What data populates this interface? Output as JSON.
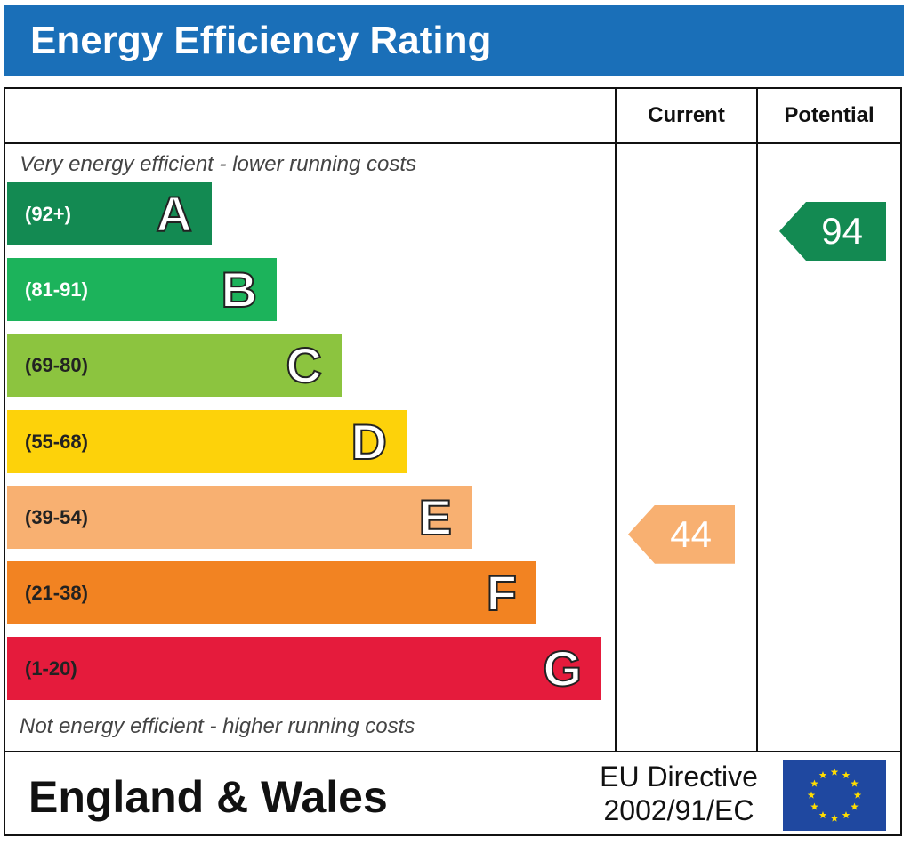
{
  "header": {
    "title": "Energy Efficiency Rating"
  },
  "columns": {
    "current": "Current",
    "potential": "Potential"
  },
  "notes": {
    "top": "Very energy efficient - lower running costs",
    "bottom": "Not energy efficient - higher running costs"
  },
  "bands": [
    {
      "range": "(92+)",
      "letter": "A",
      "color": "#138a52",
      "range_color": "#ffffff"
    },
    {
      "range": "(81-91)",
      "letter": "B",
      "color": "#1cb35b",
      "range_color": "#ffffff"
    },
    {
      "range": "(69-80)",
      "letter": "C",
      "color": "#8cc43f",
      "range_color": "#222222"
    },
    {
      "range": "(55-68)",
      "letter": "D",
      "color": "#fdd20a",
      "range_color": "#222222"
    },
    {
      "range": "(39-54)",
      "letter": "E",
      "color": "#f8b071",
      "range_color": "#222222"
    },
    {
      "range": "(21-38)",
      "letter": "F",
      "color": "#f28322",
      "range_color": "#222222"
    },
    {
      "range": "(1-20)",
      "letter": "G",
      "color": "#e51b3c",
      "range_color": "#222222"
    }
  ],
  "ratings": {
    "current": {
      "value": "44",
      "band": "E",
      "color": "#f8b071"
    },
    "potential": {
      "value": "94",
      "band": "A",
      "color": "#138a52"
    }
  },
  "footer": {
    "region": "England & Wales",
    "directive_line1": "EU Directive",
    "directive_line2": "2002/91/EC"
  }
}
